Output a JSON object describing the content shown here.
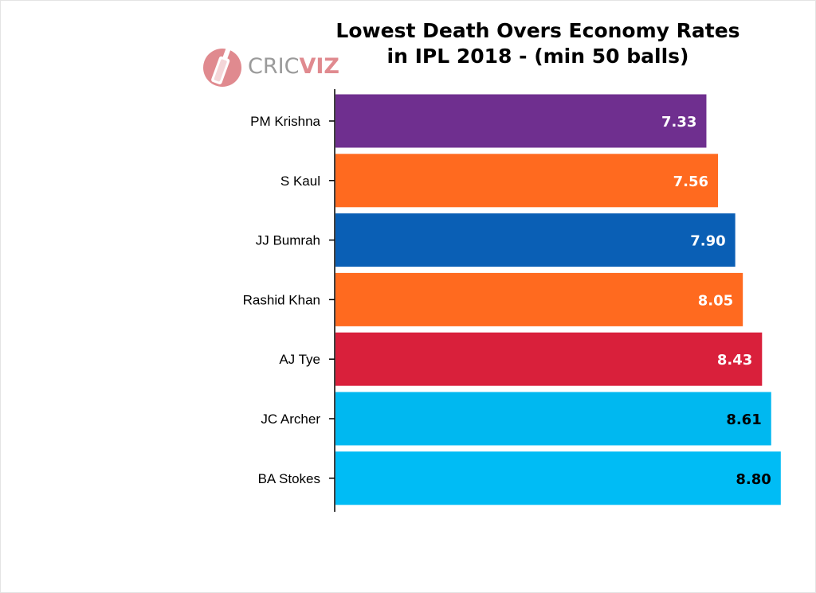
{
  "logo": {
    "text_part1": "CRIC",
    "text_part2": "VIZ"
  },
  "chart_data": {
    "type": "bar",
    "orientation": "horizontal",
    "title": "Lowest Death Overs Economy Rates",
    "subtitle": "in IPL 2018 - (min 50 balls)",
    "xlabel": "",
    "ylabel": "",
    "grid": false,
    "legend": false,
    "categories": [
      "PM Krishna",
      "S Kaul",
      "JJ Bumrah",
      "Rashid Khan",
      "AJ Tye",
      "JC Archer",
      "BA Stokes"
    ],
    "values": [
      7.33,
      7.56,
      7.9,
      8.05,
      8.43,
      8.61,
      8.8
    ],
    "value_labels": [
      "7.33",
      "7.56",
      "7.90",
      "8.05",
      "8.43",
      "8.61",
      "8.80"
    ],
    "bar_colors": [
      "#6f2f8f",
      "#ff6a1f",
      "#0a5fb5",
      "#ff6a1f",
      "#d9203b",
      "#00b8f0",
      "#00bcf5"
    ],
    "label_colors": [
      "#ffffff",
      "#ffffff",
      "#ffffff",
      "#ffffff",
      "#ffffff",
      "#000000",
      "#000000"
    ]
  }
}
